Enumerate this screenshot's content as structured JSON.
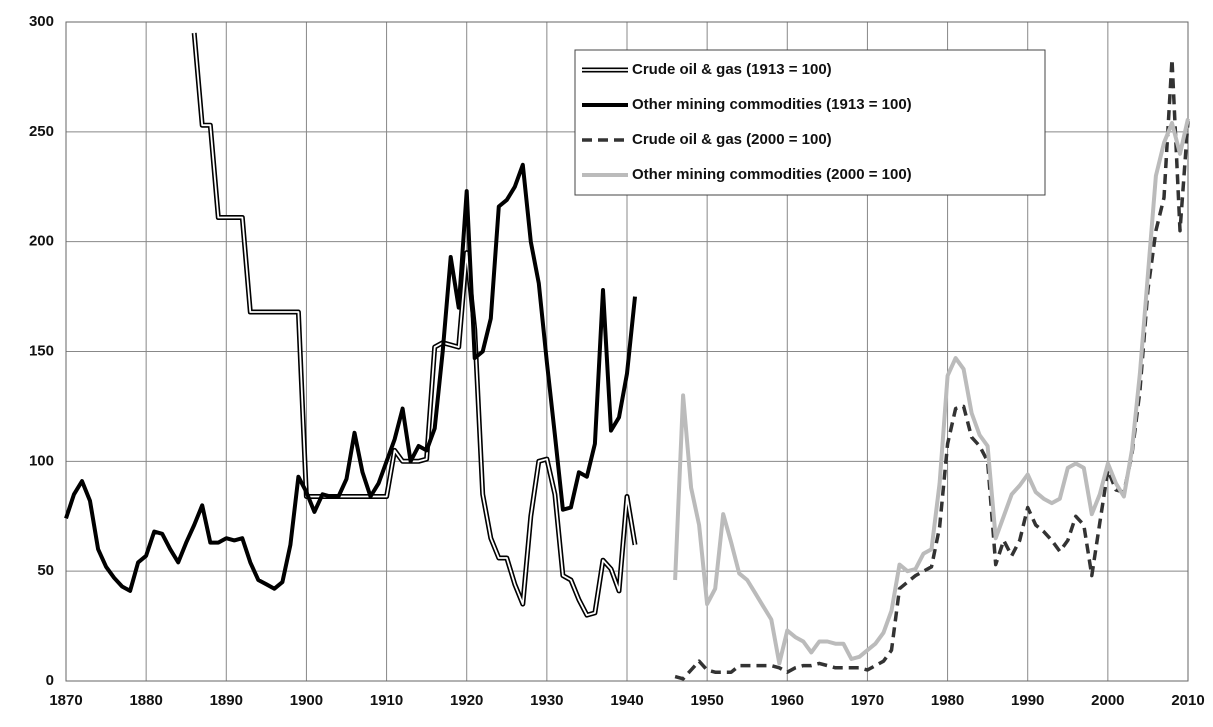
{
  "chart_data": {
    "type": "line",
    "xlim": [
      1870,
      2010
    ],
    "xticks": [
      1870,
      1880,
      1890,
      1900,
      1910,
      1920,
      1930,
      1940,
      1950,
      1960,
      1970,
      1980,
      1990,
      2000,
      2010
    ],
    "ylim": [
      0,
      300
    ],
    "yticks": [
      0,
      50,
      100,
      150,
      200,
      250,
      300
    ],
    "grid": true,
    "series": [
      {
        "name": "Crude oil & gas (1913 = 100)",
        "color": "#000000",
        "style": "double",
        "x": [
          1886,
          1887,
          1888,
          1889,
          1890,
          1891,
          1892,
          1893,
          1894,
          1895,
          1896,
          1897,
          1898,
          1899,
          1900,
          1901,
          1902,
          1903,
          1904,
          1905,
          1906,
          1907,
          1908,
          1909,
          1910,
          1911,
          1912,
          1913,
          1914,
          1915,
          1916,
          1917,
          1918,
          1919,
          1920,
          1921,
          1922,
          1923,
          1924,
          1925,
          1926,
          1927,
          1928,
          1929,
          1930,
          1931,
          1932,
          1933,
          1934,
          1935,
          1936,
          1937,
          1938,
          1939,
          1940,
          1941
        ],
        "values": [
          295,
          253,
          253,
          211,
          211,
          211,
          211,
          168,
          168,
          168,
          168,
          168,
          168,
          168,
          84,
          84,
          84,
          84,
          84,
          84,
          84,
          84,
          84,
          84,
          84,
          105,
          100,
          100,
          100,
          101,
          152,
          154,
          153,
          152,
          195,
          160,
          85,
          65,
          56,
          56,
          44,
          35,
          75,
          100,
          101,
          85,
          48,
          46,
          37,
          30,
          31,
          55,
          51,
          41,
          84,
          62
        ]
      },
      {
        "name": "Other mining commodities (1913 = 100)",
        "color": "#000000",
        "style": "solid",
        "x": [
          1870,
          1871,
          1872,
          1873,
          1874,
          1875,
          1876,
          1877,
          1878,
          1879,
          1880,
          1881,
          1882,
          1883,
          1884,
          1885,
          1886,
          1887,
          1888,
          1889,
          1890,
          1891,
          1892,
          1893,
          1894,
          1895,
          1896,
          1897,
          1898,
          1899,
          1900,
          1901,
          1902,
          1903,
          1904,
          1905,
          1906,
          1907,
          1908,
          1909,
          1910,
          1911,
          1912,
          1913,
          1914,
          1915,
          1916,
          1917,
          1918,
          1919,
          1920,
          1921,
          1922,
          1923,
          1924,
          1925,
          1926,
          1927,
          1928,
          1929,
          1930,
          1931,
          1932,
          1933,
          1934,
          1935,
          1936,
          1937,
          1938,
          1939,
          1940,
          1941
        ],
        "values": [
          74,
          85,
          91,
          82,
          60,
          52,
          47,
          43,
          41,
          54,
          57,
          68,
          67,
          60,
          54,
          63,
          71,
          80,
          63,
          63,
          65,
          64,
          65,
          54,
          46,
          44,
          42,
          45,
          62,
          93,
          86,
          77,
          85,
          84,
          84,
          92,
          113,
          95,
          84,
          90,
          100,
          110,
          124,
          100,
          107,
          105,
          115,
          150,
          193,
          170,
          223,
          147,
          150,
          165,
          216,
          219,
          225,
          235,
          200,
          181,
          145,
          112,
          78,
          79,
          95,
          93,
          108,
          178,
          114,
          120,
          140,
          175
        ]
      },
      {
        "name": "Crude oil & gas (2000 = 100)",
        "color": "#333333",
        "style": "dashed",
        "x": [
          1946,
          1947,
          1948,
          1949,
          1950,
          1951,
          1952,
          1953,
          1954,
          1955,
          1956,
          1957,
          1958,
          1959,
          1960,
          1961,
          1962,
          1963,
          1964,
          1965,
          1966,
          1967,
          1968,
          1969,
          1970,
          1971,
          1972,
          1973,
          1974,
          1975,
          1976,
          1977,
          1978,
          1979,
          1980,
          1981,
          1982,
          1983,
          1984,
          1985,
          1986,
          1987,
          1988,
          1989,
          1990,
          1991,
          1992,
          1993,
          1994,
          1995,
          1996,
          1997,
          1998,
          1999,
          2000,
          2001,
          2002,
          2003,
          2004,
          2005,
          2006,
          2007,
          2008,
          2009,
          2010
        ],
        "values": [
          2,
          1,
          5,
          9,
          5,
          4,
          4,
          4,
          7,
          7,
          7,
          7,
          7,
          6,
          4,
          6,
          7,
          7,
          8,
          7,
          6,
          6,
          6,
          6,
          5,
          7,
          9,
          14,
          42,
          45,
          48,
          50,
          52,
          70,
          108,
          124,
          125,
          111,
          107,
          100,
          53,
          64,
          57,
          64,
          79,
          71,
          68,
          64,
          59,
          64,
          75,
          71,
          48,
          72,
          96,
          87,
          86,
          103,
          132,
          178,
          205,
          220,
          283,
          205,
          255
        ]
      },
      {
        "name": "Other mining commodities (2000 = 100)",
        "color": "#bbbbbb",
        "style": "solid",
        "x": [
          1946,
          1947,
          1948,
          1949,
          1950,
          1951,
          1952,
          1953,
          1954,
          1955,
          1956,
          1957,
          1958,
          1959,
          1960,
          1961,
          1962,
          1963,
          1964,
          1965,
          1966,
          1967,
          1968,
          1969,
          1970,
          1971,
          1972,
          1973,
          1974,
          1975,
          1976,
          1977,
          1978,
          1979,
          1980,
          1981,
          1982,
          1983,
          1984,
          1985,
          1986,
          1987,
          1988,
          1989,
          1990,
          1991,
          1992,
          1993,
          1994,
          1995,
          1996,
          1997,
          1998,
          1999,
          2000,
          2001,
          2002,
          2003,
          2004,
          2005,
          2006,
          2007,
          2008,
          2009,
          2010
        ],
        "values": [
          46,
          130,
          88,
          71,
          35,
          42,
          76,
          63,
          49,
          46,
          40,
          34,
          28,
          8,
          23,
          20,
          18,
          13,
          18,
          18,
          17,
          17,
          10,
          11,
          14,
          17,
          22,
          32,
          53,
          50,
          51,
          58,
          60,
          90,
          139,
          147,
          142,
          122,
          112,
          107,
          65,
          75,
          85,
          89,
          94,
          86,
          83,
          81,
          83,
          97,
          99,
          97,
          76,
          85,
          99,
          90,
          84,
          105,
          140,
          185,
          230,
          245,
          254,
          240,
          256
        ]
      }
    ]
  }
}
